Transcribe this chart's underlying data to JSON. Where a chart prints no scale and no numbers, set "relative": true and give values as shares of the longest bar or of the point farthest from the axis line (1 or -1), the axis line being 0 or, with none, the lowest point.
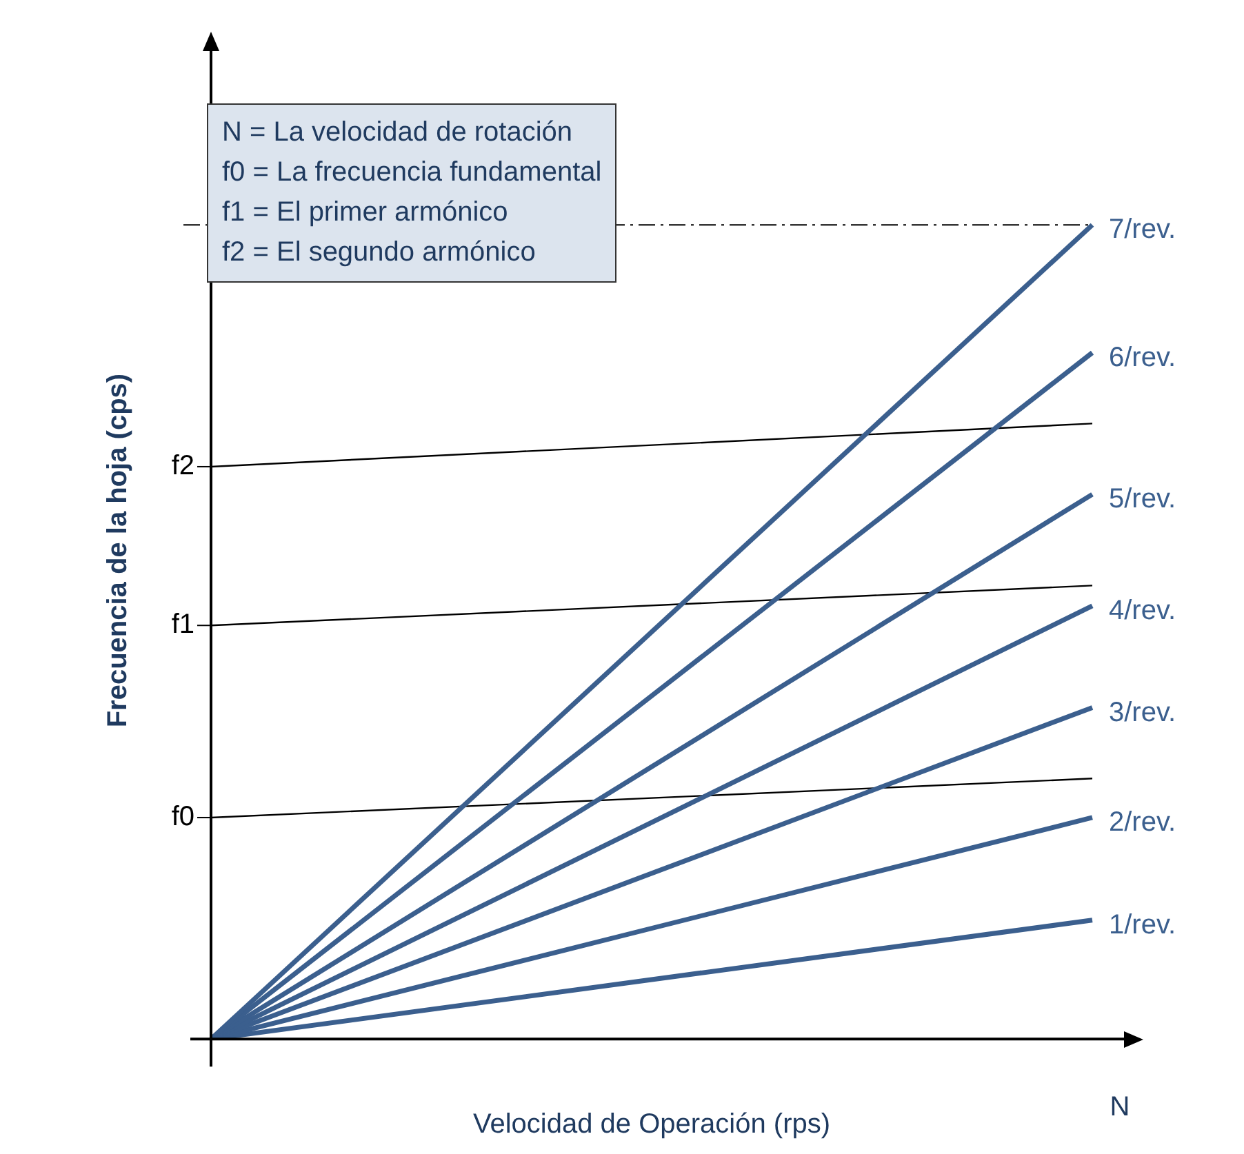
{
  "chart_data": {
    "type": "line",
    "relative": true,
    "xlabel": "Velocidad de Operación (rps)",
    "ylabel": "Frecuencia de la hoja (cps)",
    "categories": [
      null,
      null
    ],
    "grid": false,
    "legend": "left",
    "marker": "none",
    "line_style": "solid",
    "series": [
      {
        "name": "7/rev.",
        "color": "#3b5f8e",
        "values": [
          0,
          1.0
        ]
      },
      {
        "name": "6/rev.",
        "color": "#3b5f8e",
        "values": [
          0,
          0.843
        ]
      },
      {
        "name": "5/rev.",
        "color": "#3b5f8e",
        "values": [
          0,
          0.669
        ]
      },
      {
        "name": "4/rev.",
        "color": "#3b5f8e",
        "values": [
          0,
          0.532
        ]
      },
      {
        "name": "3/rev.",
        "color": "#3b5f8e",
        "values": [
          0,
          0.407
        ]
      },
      {
        "name": "2/rev.",
        "color": "#3b5f8e",
        "values": [
          0,
          0.272
        ]
      },
      {
        "name": "1/rev.",
        "color": "#3b5f8e",
        "values": [
          0,
          0.146
        ]
      },
      {
        "name": "f2",
        "color": "#000000",
        "values": [
          0.703,
          0.756
        ]
      },
      {
        "name": "f1",
        "color": "#000000",
        "values": [
          0.508,
          0.557
        ]
      },
      {
        "name": "f0",
        "color": "#000000",
        "values": [
          0.272,
          0.32
        ]
      }
    ],
    "ref_lines": [
      {
        "axis": "y",
        "value": 1.0,
        "color": "#000000",
        "line_style": "dashed"
      }
    ],
    "annotations": [
      "N = La velocidad de rotación",
      "f0 = La frecuencia fundamental",
      "f1 = El primer armónico",
      "f2 = El segundo armónico",
      "N"
    ]
  }
}
